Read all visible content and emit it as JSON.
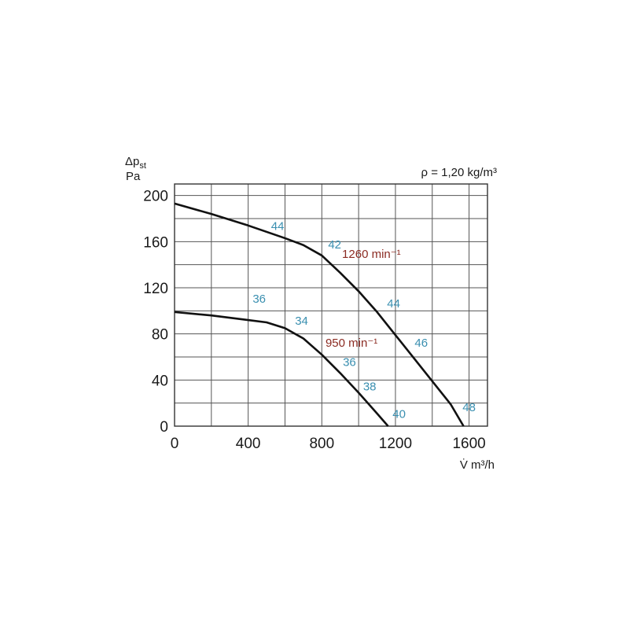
{
  "chart_data": {
    "type": "line",
    "ylabel_symbol": "Δp",
    "ylabel_sub": "st",
    "yunit": "Pa",
    "xlabel": "V̇ m³/h",
    "density_note": "ρ = 1,20 kg/m³",
    "xlim": [
      0,
      1700
    ],
    "ylim": [
      0,
      210
    ],
    "x_ticks": [
      "0",
      "400",
      "800",
      "1200",
      "1600"
    ],
    "y_ticks": [
      "0",
      "40",
      "80",
      "120",
      "160",
      "200"
    ],
    "grid": true,
    "colors": {
      "curve": "#111111",
      "speed_label": "#8b2b22",
      "noise_label": "#3a8fb0",
      "grid": "#555555"
    },
    "series": [
      {
        "name": "1260 min⁻¹",
        "points": [
          [
            0,
            193
          ],
          [
            200,
            184
          ],
          [
            400,
            174
          ],
          [
            600,
            163
          ],
          [
            700,
            157
          ],
          [
            800,
            148
          ],
          [
            900,
            133
          ],
          [
            1000,
            117
          ],
          [
            1100,
            99
          ],
          [
            1200,
            79
          ],
          [
            1300,
            59
          ],
          [
            1400,
            39
          ],
          [
            1500,
            19
          ],
          [
            1570,
            0
          ]
        ],
        "noise_labels": [
          {
            "text": "44",
            "x": 560,
            "y": 170
          },
          {
            "text": "42",
            "x": 870,
            "y": 154
          },
          {
            "text": "44",
            "x": 1190,
            "y": 103
          },
          {
            "text": "46",
            "x": 1340,
            "y": 69
          },
          {
            "text": "48",
            "x": 1600,
            "y": 13
          }
        ]
      },
      {
        "name": "950 min⁻¹",
        "points": [
          [
            0,
            99
          ],
          [
            200,
            96
          ],
          [
            400,
            92
          ],
          [
            500,
            90
          ],
          [
            600,
            85
          ],
          [
            700,
            76
          ],
          [
            800,
            62
          ],
          [
            900,
            46
          ],
          [
            1000,
            29
          ],
          [
            1100,
            11
          ],
          [
            1160,
            0
          ]
        ],
        "noise_labels": [
          {
            "text": "36",
            "x": 460,
            "y": 107
          },
          {
            "text": "34",
            "x": 690,
            "y": 88
          },
          {
            "text": "36",
            "x": 950,
            "y": 52
          },
          {
            "text": "38",
            "x": 1060,
            "y": 31
          },
          {
            "text": "40",
            "x": 1220,
            "y": 7
          }
        ]
      }
    ],
    "speed_labels": [
      {
        "text": "1260 min⁻¹",
        "x": 910,
        "y": 146
      },
      {
        "text": "950 min⁻¹",
        "x": 820,
        "y": 69
      }
    ]
  }
}
